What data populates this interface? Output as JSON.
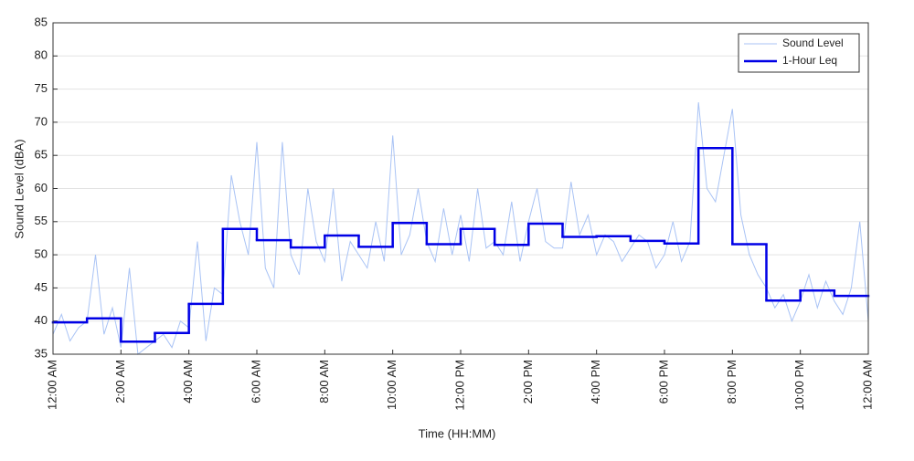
{
  "chart_data": {
    "type": "line",
    "xlabel": "Time (HH:MM)",
    "ylabel": "Sound Level (dBA)",
    "xlim": [
      0,
      24
    ],
    "ylim": [
      35,
      85
    ],
    "xticks": [
      {
        "value": 0,
        "label": "12:00 AM"
      },
      {
        "value": 2,
        "label": "2:00 AM"
      },
      {
        "value": 4,
        "label": "4:00 AM"
      },
      {
        "value": 6,
        "label": "6:00 AM"
      },
      {
        "value": 8,
        "label": "8:00 AM"
      },
      {
        "value": 10,
        "label": "10:00 AM"
      },
      {
        "value": 12,
        "label": "12:00 PM"
      },
      {
        "value": 14,
        "label": "2:00 PM"
      },
      {
        "value": 16,
        "label": "4:00 PM"
      },
      {
        "value": 18,
        "label": "6:00 PM"
      },
      {
        "value": 20,
        "label": "8:00 PM"
      },
      {
        "value": 22,
        "label": "10:00 PM"
      },
      {
        "value": 24,
        "label": "12:00 AM"
      }
    ],
    "yticks": [
      35,
      40,
      45,
      50,
      55,
      60,
      65,
      70,
      75,
      80,
      85
    ],
    "grid": true,
    "legend": "upper right",
    "series": [
      {
        "name": "Sound Level",
        "color": "#a9c3f5",
        "drawstyle": "default",
        "x": [
          0,
          0.25,
          0.5,
          0.75,
          1,
          1.25,
          1.5,
          1.75,
          2,
          2.25,
          2.5,
          2.75,
          3,
          3.25,
          3.5,
          3.75,
          4,
          4.25,
          4.5,
          4.75,
          5,
          5.25,
          5.5,
          5.75,
          6,
          6.25,
          6.5,
          6.75,
          7,
          7.25,
          7.5,
          7.75,
          8,
          8.25,
          8.5,
          8.75,
          9,
          9.25,
          9.5,
          9.75,
          10,
          10.25,
          10.5,
          10.75,
          11,
          11.25,
          11.5,
          11.75,
          12,
          12.25,
          12.5,
          12.75,
          13,
          13.25,
          13.5,
          13.75,
          14,
          14.25,
          14.5,
          14.75,
          15,
          15.25,
          15.5,
          15.75,
          16,
          16.25,
          16.5,
          16.75,
          17,
          17.25,
          17.5,
          17.75,
          18,
          18.25,
          18.5,
          18.75,
          19,
          19.25,
          19.5,
          19.75,
          20,
          20.25,
          20.5,
          20.75,
          21,
          21.25,
          21.5,
          21.75,
          22,
          22.25,
          22.5,
          22.75,
          23,
          23.25,
          23.5,
          23.75,
          24
        ],
        "values": [
          38,
          41,
          37,
          39,
          40,
          50,
          38,
          42,
          36,
          48,
          35,
          36,
          37,
          38,
          36,
          40,
          39,
          52,
          37,
          45,
          44,
          62,
          55,
          50,
          67,
          48,
          45,
          67,
          50,
          47,
          60,
          52,
          49,
          60,
          46,
          52,
          50,
          48,
          55,
          49,
          68,
          50,
          53,
          60,
          52,
          49,
          57,
          50,
          56,
          49,
          60,
          51,
          52,
          50,
          58,
          49,
          55,
          60,
          52,
          51,
          51,
          61,
          53,
          56,
          50,
          53,
          52,
          49,
          51,
          53,
          52,
          48,
          50,
          55,
          49,
          52,
          73,
          60,
          58,
          65,
          72,
          56,
          50,
          47,
          45,
          42,
          44,
          40,
          43,
          47,
          42,
          46,
          43,
          41,
          45,
          55,
          40
        ]
      },
      {
        "name": "1-Hour Leq",
        "color": "#0000e6",
        "drawstyle": "steps-post",
        "x": [
          0,
          1,
          2,
          3,
          4,
          5,
          6,
          7,
          8,
          9,
          10,
          11,
          12,
          13,
          14,
          15,
          16,
          17,
          18,
          19,
          20,
          21,
          22,
          23
        ],
        "values": [
          39.8,
          40.4,
          36.9,
          38.2,
          42.6,
          53.9,
          52.2,
          51.1,
          52.9,
          51.2,
          54.8,
          51.6,
          53.9,
          51.5,
          54.7,
          52.7,
          52.8,
          52.1,
          51.7,
          66.1,
          51.6,
          43.1,
          44.6,
          43.8
        ]
      }
    ]
  }
}
